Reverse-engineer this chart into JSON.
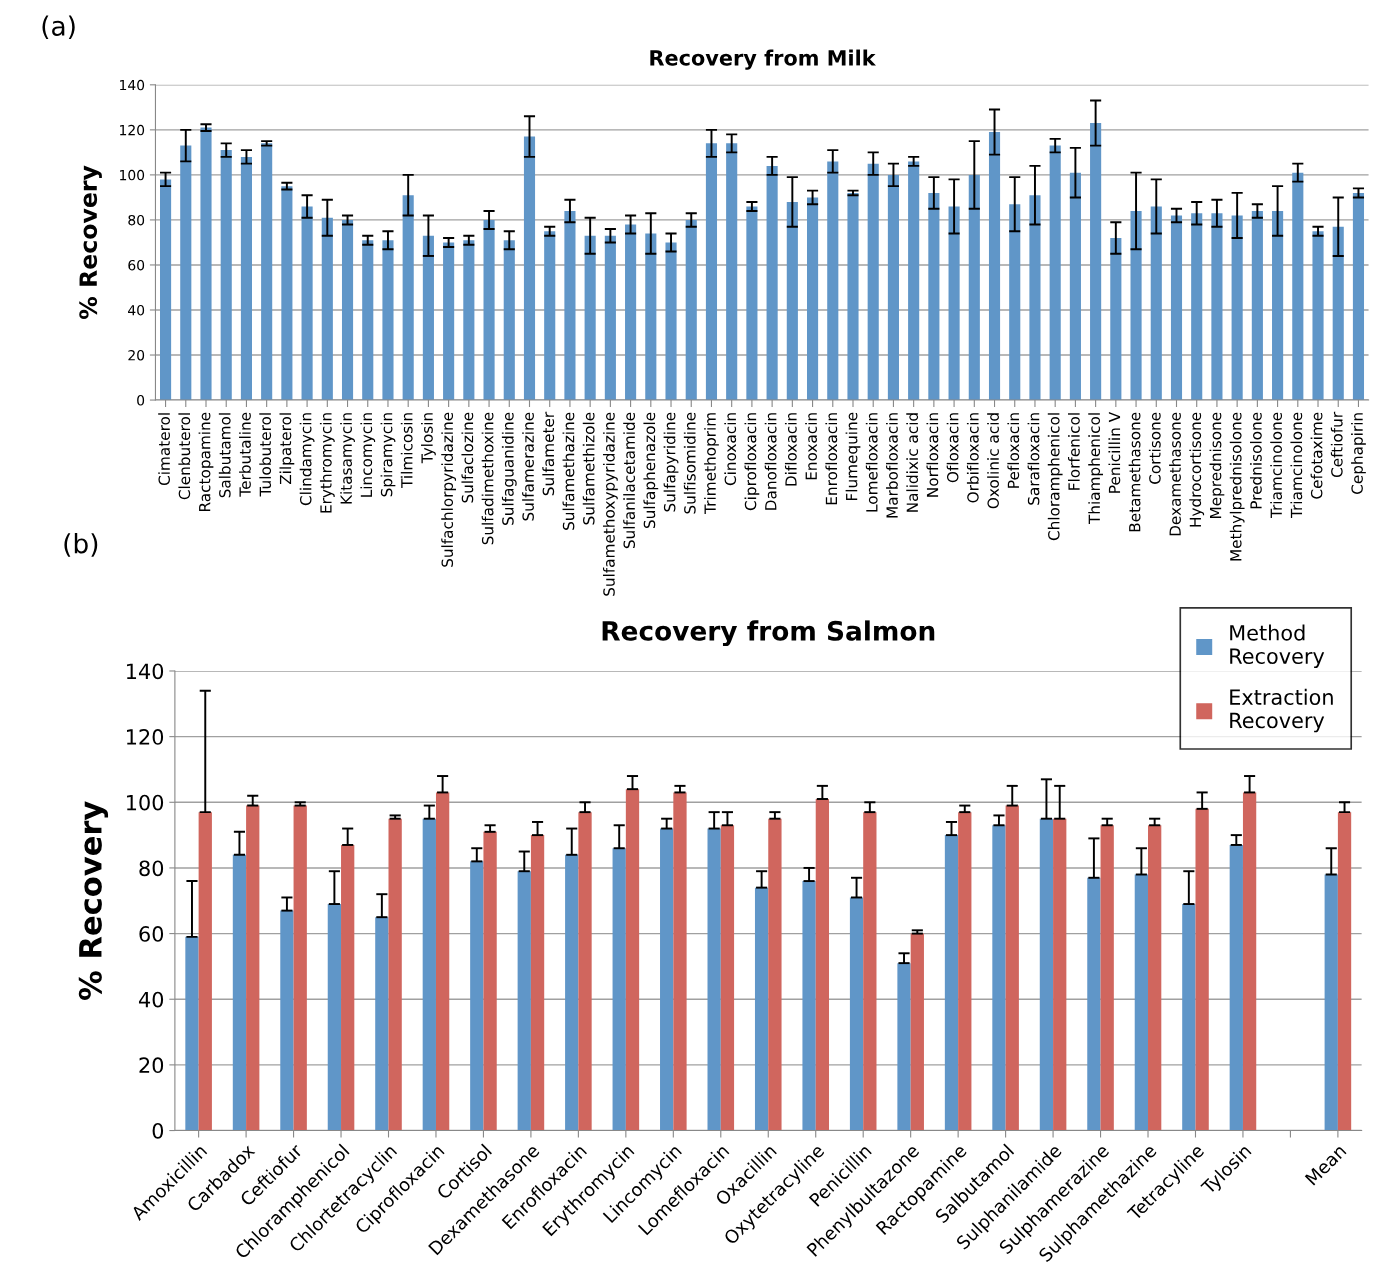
{
  "chart_data": [
    {
      "type": "bar",
      "title": "Recovery from Milk",
      "ylabel": "% Recovery",
      "annotations": [
        "(a)"
      ],
      "categories": [
        "Cimaterol",
        "Clenbuterol",
        "Ractopamine",
        "Salbutamol",
        "Terbutaline",
        "Tulobuterol",
        "Zilpaterol",
        "Clindamycin",
        "Erythromycin",
        "Kitasamycin",
        "Lincomycin",
        "Spiramycin",
        "Tilmicosin",
        "Tylosin",
        "Sulfachlorpyridazine",
        "Sulfaclozine",
        "Sulfadimethoxine",
        "Sulfaguanidine",
        "Sulfamerazine",
        "Sulfameter",
        "Sulfamethazine",
        "Sulfamethizole",
        "Sulfamethoxypyridazine",
        "Sulfanilacetamide",
        "Sulfaphenazole",
        "Sulfapyridine",
        "Sulfisomidine",
        "Trimethoprim",
        "Cinoxacin",
        "Ciprofloxacin",
        "Danofloxacin",
        "Difloxacin",
        "Enoxacin",
        "Enrofloxacin",
        "Flumequine",
        "Lomefloxacin",
        "Marbofloxacin",
        "Nalidixic acid",
        "Norfloxacin",
        "Ofloxacin",
        "Orbifloxacin",
        "Oxolinic acid",
        "Pefloxacin",
        "Sarafloxacin",
        "Chloramphenicol",
        "Florfenicol",
        "Thiamphenicol",
        "Penicillin V",
        "Betamethasone",
        "Cortisone",
        "Dexamethasone",
        "Hydrocortisone",
        "Meprednisone",
        "Methylprednisolone",
        "Prednisolone",
        "Triamcinolone",
        "Triamcinolone",
        "Cefotaxime",
        "Ceftiofur",
        "Cephapirin"
      ],
      "series": [
        {
          "color": "#6096c8",
          "values": [
            98,
            113,
            121,
            111,
            108,
            114,
            95,
            86,
            81,
            80,
            71,
            71,
            91,
            73,
            70,
            71,
            80,
            71,
            117,
            75,
            84,
            73,
            73,
            78,
            74,
            70,
            80,
            114,
            114,
            86,
            104,
            88,
            90,
            106,
            92,
            105,
            100,
            106,
            92,
            86,
            100,
            119,
            87,
            91,
            113,
            101,
            123,
            72,
            84,
            86,
            82,
            83,
            83,
            82,
            84,
            84,
            101,
            75,
            77,
            92
          ],
          "errors": [
            3,
            7,
            1.5,
            3,
            3,
            1,
            1.5,
            5,
            8,
            2,
            2,
            4,
            9,
            9,
            2,
            2,
            4,
            4,
            9,
            2,
            5,
            8,
            3,
            4,
            9,
            4,
            3,
            6,
            4,
            2,
            4,
            11,
            3,
            5,
            1,
            5,
            5,
            2,
            7,
            12,
            15,
            10,
            12,
            13,
            3,
            11,
            10,
            7,
            17,
            12,
            3,
            5,
            6,
            10,
            3,
            11,
            4,
            2,
            13,
            2
          ]
        }
      ],
      "ylim": [
        0,
        140
      ],
      "yticks": [
        0,
        20,
        40,
        60,
        80,
        100,
        120,
        140
      ],
      "grid": "y",
      "legend": false
    },
    {
      "type": "bar",
      "title": "Recovery from Salmon",
      "ylabel": "% Recovery",
      "annotations": [
        "(b)"
      ],
      "categories": [
        "Amoxicillin",
        "Carbadox",
        "Ceftiofur",
        "Chloramphenicol",
        "Chlortetracyclin",
        "Ciprofloxacin",
        "Cortisol",
        "Dexamethasone",
        "Enrofloxacin",
        "Erythromycin",
        "Lincomycin",
        "Lomefloxacin",
        "Oxacillin",
        "Oxytetracyline",
        "Penicillin",
        "Phenylbultazone",
        "Ractopamine",
        "Salbutamol",
        "Sulphanilamide",
        "Sulphamerazine",
        "Sulphamethazine",
        "Tetracyline",
        "Tylosin",
        null,
        "Mean"
      ],
      "series": [
        {
          "name": "Method Recovery",
          "color": "#6096c8",
          "values": [
            59,
            84,
            67,
            69,
            65,
            95,
            82,
            79,
            84,
            86,
            92,
            92,
            74,
            76,
            71,
            51,
            90,
            93,
            95,
            77,
            78,
            69,
            87,
            null,
            78
          ],
          "errors": [
            [
              59,
              76
            ],
            [
              84,
              91
            ],
            [
              67,
              71
            ],
            [
              69,
              79
            ],
            [
              65,
              72
            ],
            [
              95,
              99
            ],
            [
              82,
              86
            ],
            [
              79,
              85
            ],
            [
              84,
              92
            ],
            [
              86,
              93
            ],
            [
              92,
              95
            ],
            [
              92,
              97
            ],
            [
              74,
              79
            ],
            [
              76,
              80
            ],
            [
              71,
              77
            ],
            [
              51,
              54
            ],
            [
              90,
              94
            ],
            [
              93,
              96
            ],
            [
              95,
              107
            ],
            [
              77,
              89
            ],
            [
              78,
              86
            ],
            [
              69,
              79
            ],
            [
              87,
              90
            ],
            null,
            [
              78,
              86
            ]
          ]
        },
        {
          "name": "Extraction Recovery",
          "color": "#d0665e",
          "values": [
            97,
            99,
            99,
            87,
            95,
            103,
            91,
            90,
            97,
            104,
            103,
            93,
            95,
            101,
            97,
            60,
            97,
            99,
            95,
            93,
            93,
            98,
            103,
            null,
            97
          ],
          "errors": [
            [
              97,
              134
            ],
            [
              99,
              102
            ],
            [
              99,
              100
            ],
            [
              87,
              92
            ],
            [
              95,
              96
            ],
            [
              103,
              108
            ],
            [
              91,
              93
            ],
            [
              90,
              94
            ],
            [
              97,
              100
            ],
            [
              104,
              108
            ],
            [
              103,
              105
            ],
            [
              93,
              97
            ],
            [
              95,
              97
            ],
            [
              101,
              105
            ],
            [
              97,
              100
            ],
            [
              60,
              61
            ],
            [
              97,
              99
            ],
            [
              99,
              105
            ],
            [
              95,
              105
            ],
            [
              93,
              95
            ],
            [
              93,
              95
            ],
            [
              98,
              103
            ],
            [
              103,
              108
            ],
            null,
            [
              97,
              100
            ]
          ]
        }
      ],
      "ylim": [
        0,
        140
      ],
      "yticks": [
        0,
        20,
        40,
        60,
        80,
        100,
        120,
        140
      ],
      "grid": "y",
      "legend": "top right"
    }
  ]
}
